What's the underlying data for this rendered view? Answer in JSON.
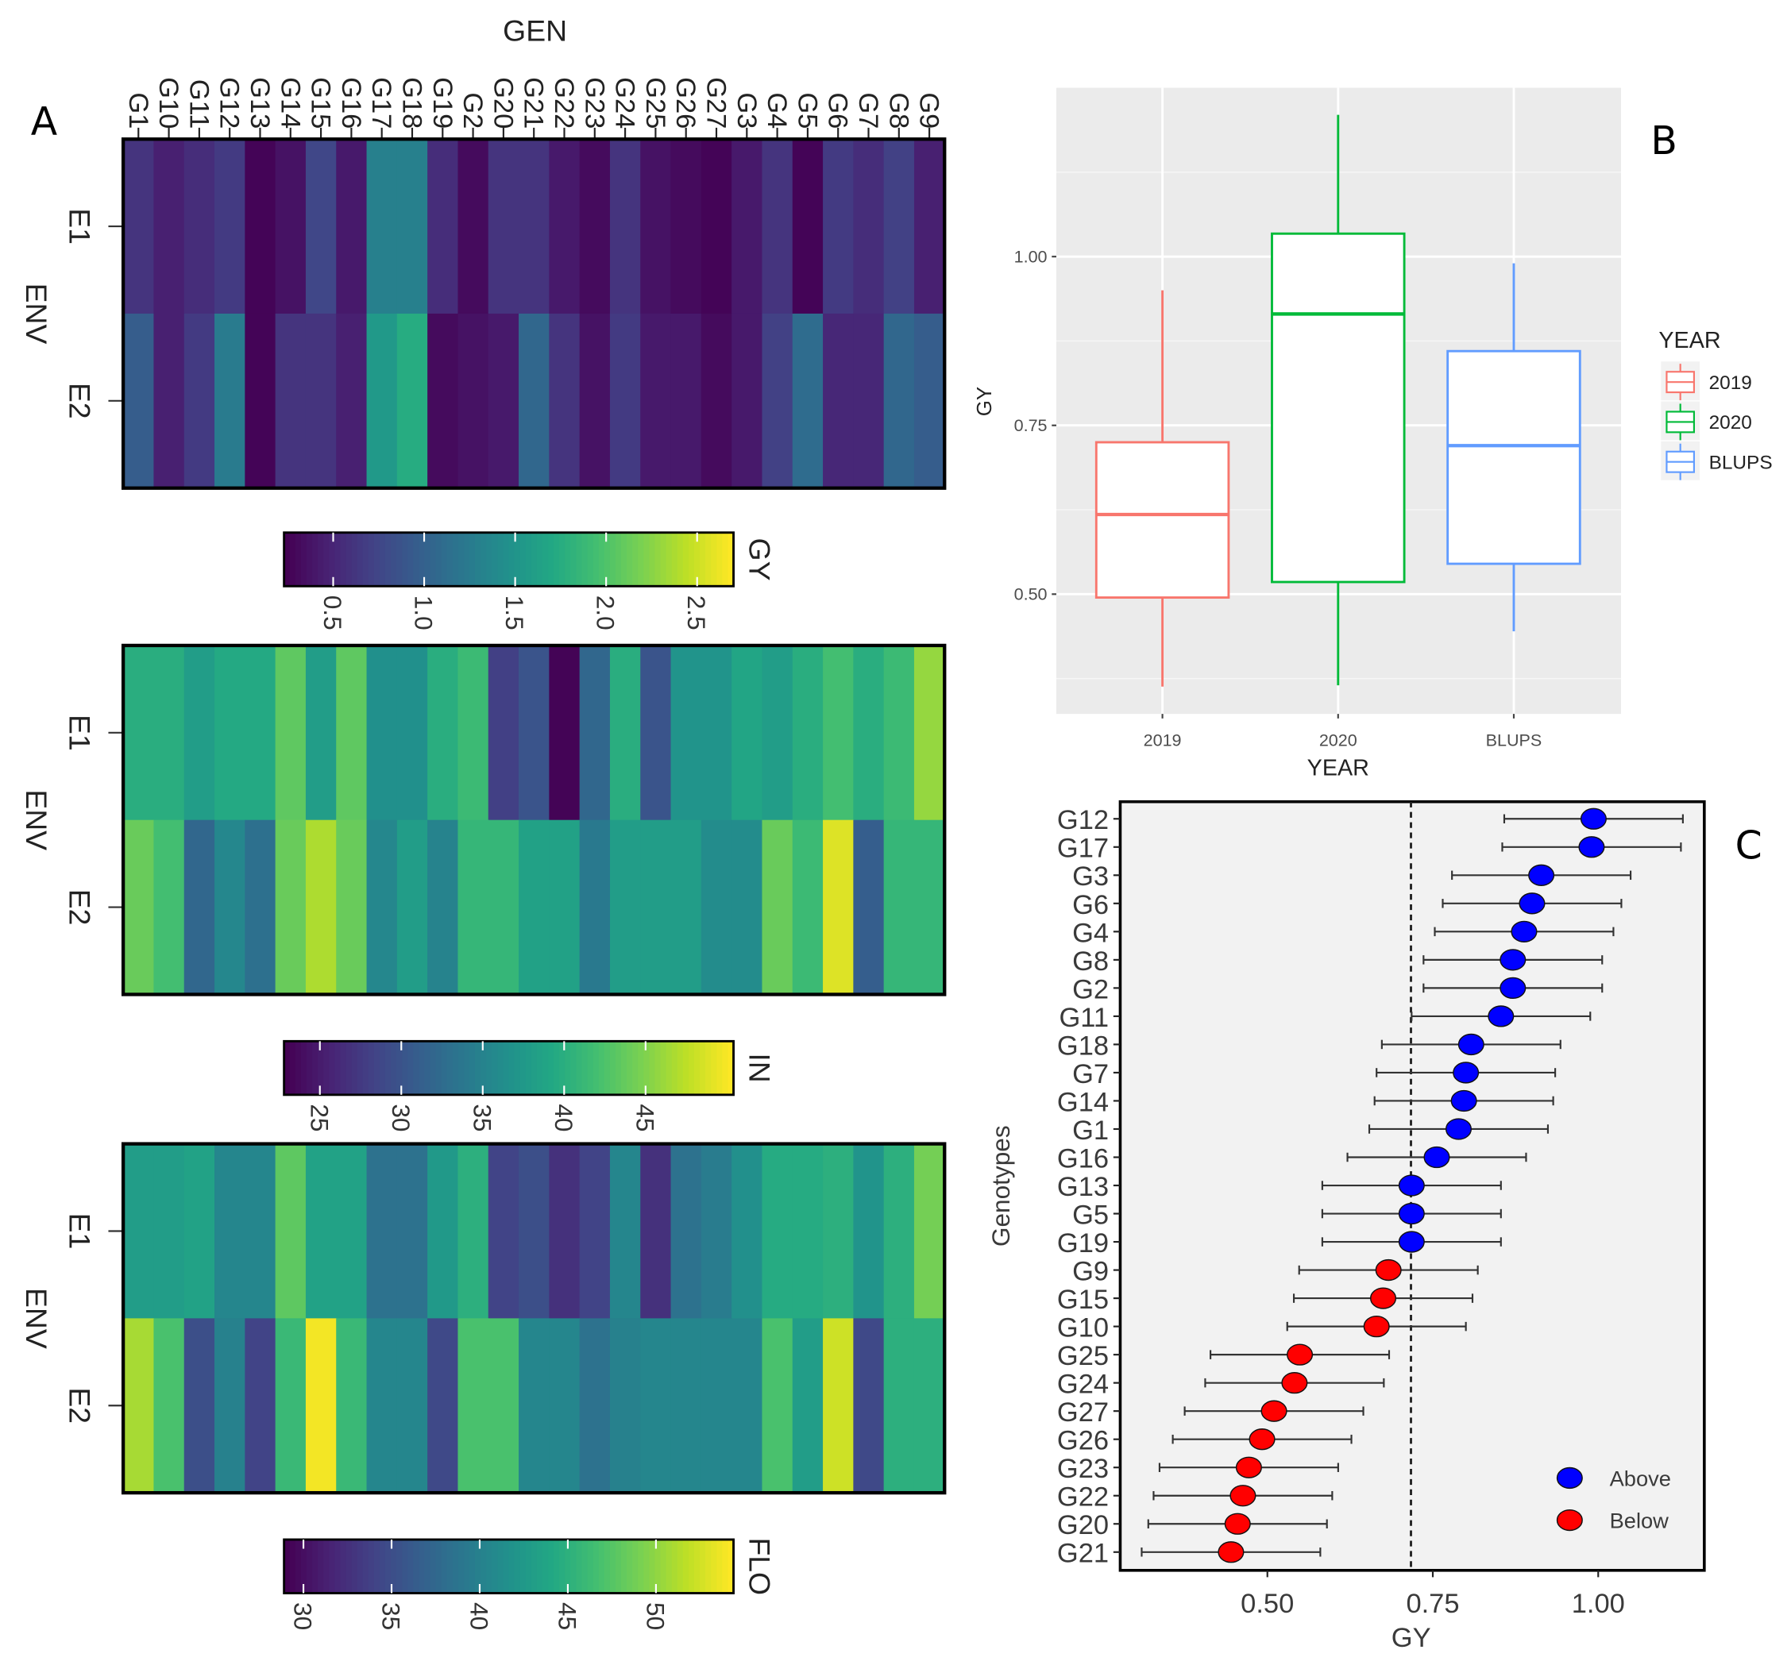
{
  "panel_letters": {
    "a": "A",
    "b": "B",
    "c": "C"
  },
  "colors": {
    "y2019": "#f8766d",
    "y2020": "#00ba38",
    "blups": "#619cff",
    "above": "#0000ff",
    "below": "#ff0000"
  },
  "chart_data": [
    {
      "type": "heatmap",
      "x_title": "GEN",
      "y_title": "ENV",
      "genotypes": [
        "G1",
        "G10",
        "G11",
        "G12",
        "G13",
        "G14",
        "G15",
        "G16",
        "G17",
        "G18",
        "G19",
        "G2",
        "G20",
        "G21",
        "G22",
        "G23",
        "G24",
        "G25",
        "G26",
        "G27",
        "G3",
        "G4",
        "G5",
        "G6",
        "G7",
        "G8",
        "G9"
      ],
      "environments": [
        "E1",
        "E2"
      ],
      "traits": [
        {
          "name": "GY",
          "range": [
            0.23,
            2.7
          ],
          "ticks": [
            "0.5",
            "1.0",
            "1.5",
            "2.0",
            "2.5"
          ],
          "tick_values": [
            0.5,
            1.0,
            1.5,
            2.0,
            2.5
          ],
          "values": {
            "E1": [
              0.6,
              0.45,
              0.55,
              0.65,
              0.25,
              0.35,
              0.75,
              0.4,
              1.3,
              1.3,
              0.55,
              0.3,
              0.6,
              0.6,
              0.4,
              0.3,
              0.6,
              0.35,
              0.3,
              0.25,
              0.4,
              0.6,
              0.25,
              0.65,
              0.55,
              0.7,
              0.45
            ],
            "E2": [
              0.95,
              0.45,
              0.65,
              1.25,
              0.25,
              0.6,
              0.6,
              0.45,
              1.55,
              1.75,
              0.3,
              0.35,
              0.4,
              1.05,
              0.6,
              0.35,
              0.65,
              0.4,
              0.4,
              0.3,
              0.4,
              0.7,
              1.1,
              0.5,
              0.5,
              1.05,
              0.95
            ]
          }
        },
        {
          "name": "IN",
          "range": [
            22.8,
            50.4
          ],
          "ticks": [
            "25",
            "30",
            "35",
            "40",
            "45"
          ],
          "tick_values": [
            25,
            30,
            35,
            40,
            45
          ],
          "values": {
            "E1": [
              40,
              40,
              38,
              39.5,
              39.5,
              43.5,
              38,
              43.5,
              36.5,
              36.5,
              40,
              41.5,
              28,
              30,
              23,
              32,
              40,
              30,
              37,
              37,
              39,
              38,
              40,
              42,
              40,
              41.5,
              46
            ],
            "E2": [
              44,
              42,
              32,
              35.5,
              33,
              44,
              47,
              44,
              35.5,
              38,
              35,
              41,
              41,
              38.5,
              38.5,
              34,
              38,
              38,
              38,
              36,
              36,
              44,
              41.5,
              49,
              31,
              41,
              41
            ]
          }
        },
        {
          "name": "FLO",
          "range": [
            28.9,
            54.4
          ],
          "ticks": [
            "30",
            "35",
            "40",
            "45",
            "50"
          ],
          "tick_values": [
            30,
            35,
            40,
            45,
            50
          ],
          "values": {
            "E1": [
              43,
              43,
              43.5,
              40.5,
              40.5,
              48,
              43.5,
              43.5,
              38.5,
              38.5,
              42.5,
              45,
              34,
              35,
              32.5,
              34,
              40.5,
              32.5,
              38.5,
              39.5,
              41.5,
              44.5,
              44.5,
              45,
              42,
              45,
              49
            ],
            "E2": [
              51,
              47,
              35,
              40,
              34,
              46,
              54,
              46,
              40.5,
              40.5,
              34.5,
              47,
              47,
              40.5,
              40.5,
              38.5,
              40,
              40.5,
              40.5,
              40.5,
              40.5,
              47,
              43,
              52.5,
              34.5,
              45,
              45
            ]
          }
        }
      ]
    },
    {
      "type": "box",
      "xlabel": "YEAR",
      "ylabel": "GY",
      "ylim": [
        0.33,
        1.25
      ],
      "yticks": [
        "0.50",
        "0.75",
        "1.00"
      ],
      "ytick_values": [
        0.5,
        0.75,
        1.0
      ],
      "legend_title": "YEAR",
      "legend_position": "right",
      "categories": [
        "2019",
        "2020",
        "BLUPS"
      ],
      "boxes": [
        {
          "name": "2019",
          "min": 0.363,
          "q1": 0.495,
          "median": 0.618,
          "q3": 0.725,
          "max": 0.95
        },
        {
          "name": "2020",
          "min": 0.365,
          "q1": 0.518,
          "median": 0.915,
          "q3": 1.034,
          "max": 1.21
        },
        {
          "name": "BLUPS",
          "min": 0.445,
          "q1": 0.545,
          "median": 0.72,
          "q3": 0.86,
          "max": 0.99
        }
      ]
    },
    {
      "type": "scatter",
      "xlabel": "GY",
      "ylabel": "Genotypes",
      "xlim": [
        0.27,
        1.16
      ],
      "xticks": [
        "0.50",
        "0.75",
        "1.00"
      ],
      "xtick_values": [
        0.5,
        0.75,
        1.0
      ],
      "reference_line": 0.717,
      "error_half_width": 0.135,
      "legend": [
        "Above",
        "Below"
      ],
      "legend_position": "bottom-right",
      "points": [
        {
          "genotype": "G12",
          "gy": 0.993,
          "group": "Above"
        },
        {
          "genotype": "G17",
          "gy": 0.99,
          "group": "Above"
        },
        {
          "genotype": "G3",
          "gy": 0.914,
          "group": "Above"
        },
        {
          "genotype": "G6",
          "gy": 0.9,
          "group": "Above"
        },
        {
          "genotype": "G4",
          "gy": 0.888,
          "group": "Above"
        },
        {
          "genotype": "G8",
          "gy": 0.871,
          "group": "Above"
        },
        {
          "genotype": "G2",
          "gy": 0.871,
          "group": "Above"
        },
        {
          "genotype": "G11",
          "gy": 0.853,
          "group": "Above"
        },
        {
          "genotype": "G18",
          "gy": 0.808,
          "group": "Above"
        },
        {
          "genotype": "G7",
          "gy": 0.8,
          "group": "Above"
        },
        {
          "genotype": "G14",
          "gy": 0.797,
          "group": "Above"
        },
        {
          "genotype": "G1",
          "gy": 0.789,
          "group": "Above"
        },
        {
          "genotype": "G16",
          "gy": 0.756,
          "group": "Above"
        },
        {
          "genotype": "G13",
          "gy": 0.718,
          "group": "Above"
        },
        {
          "genotype": "G5",
          "gy": 0.718,
          "group": "Above"
        },
        {
          "genotype": "G19",
          "gy": 0.718,
          "group": "Above"
        },
        {
          "genotype": "G9",
          "gy": 0.683,
          "group": "Below"
        },
        {
          "genotype": "G15",
          "gy": 0.675,
          "group": "Below"
        },
        {
          "genotype": "G10",
          "gy": 0.665,
          "group": "Below"
        },
        {
          "genotype": "G25",
          "gy": 0.549,
          "group": "Below"
        },
        {
          "genotype": "G24",
          "gy": 0.541,
          "group": "Below"
        },
        {
          "genotype": "G27",
          "gy": 0.51,
          "group": "Below"
        },
        {
          "genotype": "G26",
          "gy": 0.492,
          "group": "Below"
        },
        {
          "genotype": "G23",
          "gy": 0.472,
          "group": "Below"
        },
        {
          "genotype": "G22",
          "gy": 0.463,
          "group": "Below"
        },
        {
          "genotype": "G20",
          "gy": 0.455,
          "group": "Below"
        },
        {
          "genotype": "G21",
          "gy": 0.445,
          "group": "Below"
        }
      ]
    }
  ]
}
